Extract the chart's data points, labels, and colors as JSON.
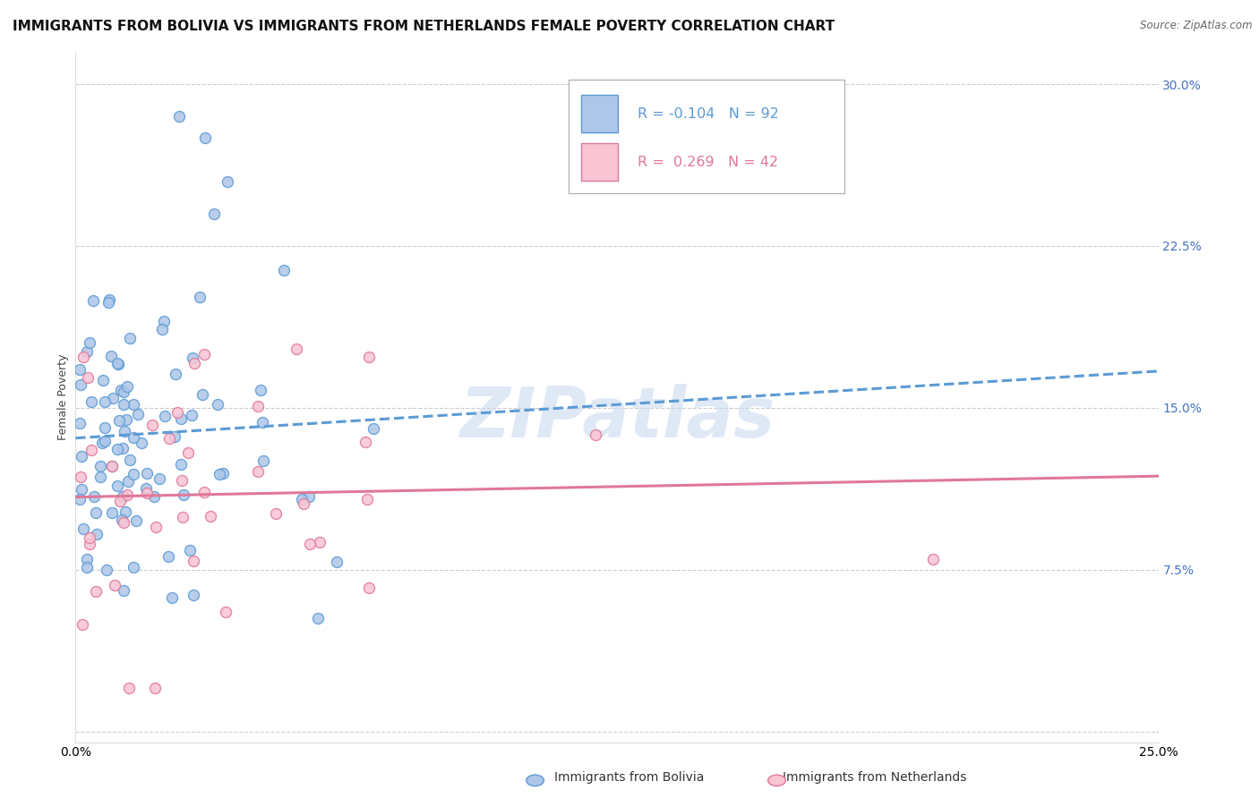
{
  "title": "IMMIGRANTS FROM BOLIVIA VS IMMIGRANTS FROM NETHERLANDS FEMALE POVERTY CORRELATION CHART",
  "source": "Source: ZipAtlas.com",
  "ylabel": "Female Poverty",
  "xlim": [
    0.0,
    0.25
  ],
  "ylim": [
    -0.005,
    0.315
  ],
  "xtick_positions": [
    0.0,
    0.25
  ],
  "xticklabels": [
    "0.0%",
    "25.0%"
  ],
  "yticks_right": [
    0.075,
    0.15,
    0.225,
    0.3
  ],
  "ytick_right_labels": [
    "7.5%",
    "15.0%",
    "22.5%",
    "30.0%"
  ],
  "bolivia_color": "#aec6e8",
  "bolivia_edge": "#5b9bd5",
  "bolivia_line_color": "#5b9bd5",
  "netherlands_color": "#f9c4d4",
  "netherlands_edge": "#e07898",
  "netherlands_line_color": "#e07898",
  "bolivia_R": -0.104,
  "bolivia_N": 92,
  "netherlands_R": 0.269,
  "netherlands_N": 42,
  "legend_label_bolivia": "Immigrants from Bolivia",
  "legend_label_netherlands": "Immigrants from Netherlands",
  "watermark": "ZIPatlas",
  "title_fontsize": 11,
  "axis_label_fontsize": 9,
  "tick_fontsize": 10,
  "legend_R_color_bolivia": "#5b9bd5",
  "legend_R_color_netherlands": "#e07898"
}
